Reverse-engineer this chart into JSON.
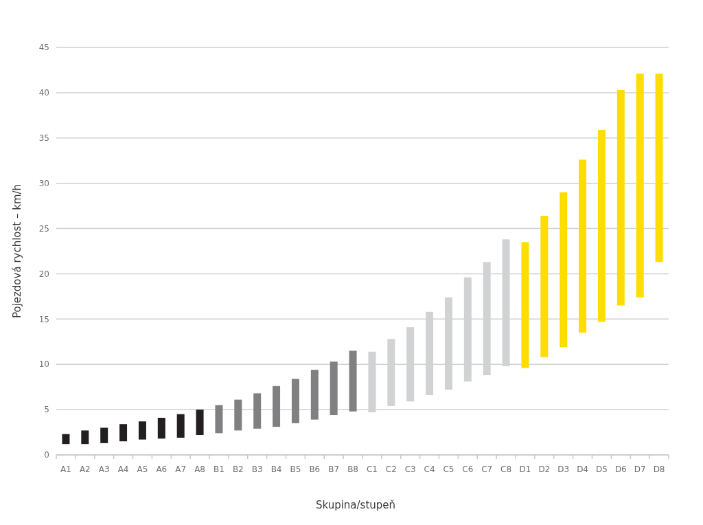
{
  "chart_data": {
    "type": "bar",
    "xlabel": "Skupina/stupeň",
    "ylabel": "Pojezdová rychlost – km/h",
    "categories": [
      "A1",
      "A2",
      "A3",
      "A4",
      "A5",
      "A6",
      "A7",
      "A8",
      "B1",
      "B2",
      "B3",
      "B4",
      "B5",
      "B6",
      "B7",
      "B8",
      "C1",
      "C2",
      "C3",
      "C4",
      "C5",
      "C6",
      "C7",
      "C8",
      "D1",
      "D2",
      "D3",
      "D4",
      "D5",
      "D6",
      "D7",
      "D8"
    ],
    "base": [
      1.2,
      1.2,
      1.3,
      1.5,
      1.7,
      1.8,
      1.9,
      2.2,
      2.4,
      2.7,
      2.9,
      3.1,
      3.5,
      3.9,
      4.4,
      4.8,
      4.7,
      5.4,
      5.9,
      6.6,
      7.2,
      8.1,
      8.8,
      9.8,
      9.6,
      10.8,
      11.9,
      13.5,
      14.7,
      16.5,
      17.4,
      21.3
    ],
    "values": [
      1.1,
      1.5,
      1.7,
      1.9,
      2.0,
      2.3,
      2.6,
      2.8,
      3.1,
      3.4,
      3.9,
      4.5,
      4.9,
      5.5,
      5.9,
      6.7,
      6.7,
      7.4,
      8.2,
      9.2,
      10.2,
      11.5,
      12.5,
      14.0,
      13.9,
      15.6,
      17.1,
      19.1,
      21.2,
      23.8,
      24.7,
      20.8
    ],
    "colors": [
      "#231f20",
      "#231f20",
      "#231f20",
      "#231f20",
      "#231f20",
      "#231f20",
      "#231f20",
      "#231f20",
      "#808083",
      "#808083",
      "#808083",
      "#808083",
      "#808083",
      "#808083",
      "#808083",
      "#808083",
      "#d1d2d4",
      "#d1d2d4",
      "#d1d2d4",
      "#d1d2d4",
      "#d1d2d4",
      "#d1d2d4",
      "#d1d2d4",
      "#d1d2d4",
      "#ffdd00",
      "#ffdd00",
      "#ffdd00",
      "#ffdd00",
      "#ffdd00",
      "#ffdd00",
      "#ffdd00",
      "#ffdd00"
    ],
    "ylim": [
      0,
      45
    ],
    "yticks": [
      0,
      5,
      10,
      15,
      20,
      25,
      30,
      35,
      40,
      45
    ],
    "grid": "y"
  }
}
